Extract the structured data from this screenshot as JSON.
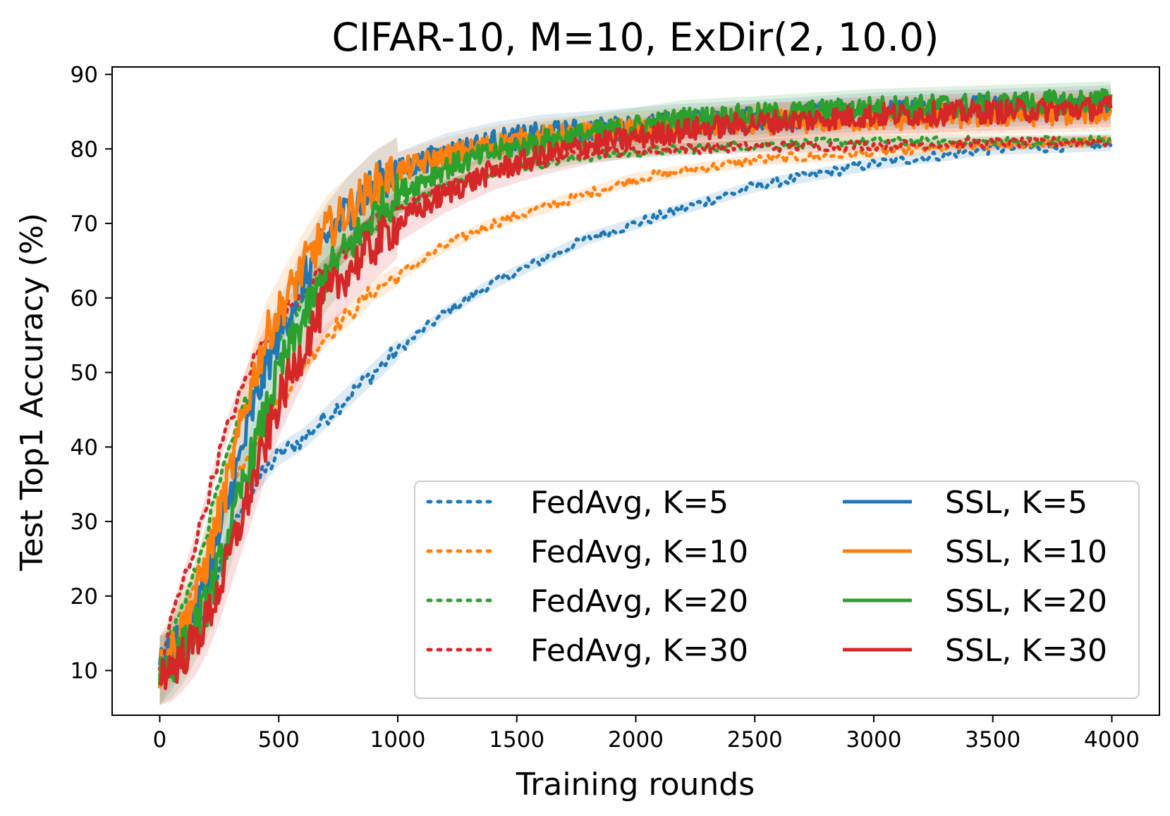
{
  "chart_data": {
    "type": "line",
    "title": "CIFAR-10, M=10, ExDir(2, 10.0)",
    "xlabel": "Training rounds",
    "ylabel": "Test Top1 Accuracy (%)",
    "xlim": [
      -200,
      4200
    ],
    "ylim": [
      4,
      91
    ],
    "xticks": [
      0,
      500,
      1000,
      1500,
      2000,
      2500,
      3000,
      3500,
      4000
    ],
    "yticks": [
      10,
      20,
      30,
      40,
      50,
      60,
      70,
      80,
      90
    ],
    "grid": false,
    "legend_position": "lower-right",
    "legend_columns": 2,
    "x": [
      0,
      50,
      100,
      150,
      200,
      250,
      300,
      350,
      400,
      450,
      500,
      600,
      700,
      800,
      900,
      1000,
      1200,
      1400,
      1600,
      1800,
      2000,
      2200,
      2500,
      3000,
      3500,
      4000
    ],
    "series": [
      {
        "name": "FedAvg, K=5",
        "color": "#1f77b4",
        "style": "dotted",
        "values": [
          10,
          10,
          12,
          15,
          19,
          24,
          28,
          32,
          35,
          37,
          39,
          41,
          44,
          47,
          50,
          53,
          58,
          62,
          65,
          68,
          70,
          72,
          75,
          78,
          80,
          80.5
        ]
      },
      {
        "name": "FedAvg, K=10",
        "color": "#ff7f0e",
        "style": "dotted",
        "values": [
          10,
          13,
          17,
          21,
          25,
          30,
          34,
          38,
          41,
          44,
          46,
          51,
          55,
          58,
          61,
          63,
          67,
          70,
          72,
          74,
          76,
          77,
          78.5,
          79.5,
          80.5,
          81
        ]
      },
      {
        "name": "FedAvg, K=20",
        "color": "#2ca02c",
        "style": "dotted",
        "values": [
          10,
          15,
          19,
          23,
          29,
          35,
          40,
          45,
          49,
          52,
          55,
          60,
          64,
          67,
          70,
          72,
          75,
          77,
          78,
          79,
          79.5,
          80,
          80.5,
          81,
          81,
          81.2
        ]
      },
      {
        "name": "FedAvg, K=30",
        "color": "#d62728",
        "style": "dotted",
        "values": [
          10,
          17,
          22,
          27,
          33,
          39,
          44,
          48,
          52,
          55,
          57,
          61,
          64,
          67,
          70,
          72,
          75,
          77,
          78.5,
          79.5,
          79.8,
          80,
          80.3,
          80.5,
          80.8,
          81
        ]
      },
      {
        "name": "SSL, K=5",
        "color": "#1f77b4",
        "style": "solid",
        "values": [
          10,
          12,
          15,
          18,
          22,
          28,
          34,
          40,
          46,
          51,
          55,
          62,
          68,
          72,
          75,
          77,
          79.5,
          81,
          82,
          82.5,
          83,
          83.5,
          84,
          85,
          85.5,
          86
        ]
      },
      {
        "name": "SSL, K=10",
        "color": "#ff7f0e",
        "style": "solid",
        "values": [
          10,
          13,
          16,
          20,
          25,
          31,
          37,
          44,
          50,
          55,
          58,
          64,
          69,
          72,
          75,
          77,
          79,
          80.5,
          81.5,
          82,
          82.5,
          83,
          83.5,
          84,
          84.5,
          85
        ]
      },
      {
        "name": "SSL, K=20",
        "color": "#2ca02c",
        "style": "solid",
        "values": [
          10,
          11,
          13,
          16,
          19,
          24,
          29,
          35,
          40,
          45,
          50,
          57,
          63,
          67,
          71,
          74,
          77.5,
          79.5,
          81,
          82,
          83,
          84,
          84.5,
          85.5,
          86,
          86.5
        ]
      },
      {
        "name": "SSL, K=30",
        "color": "#d62728",
        "style": "solid",
        "values": [
          10,
          10.5,
          12,
          14,
          17,
          21,
          26,
          31,
          36,
          41,
          46,
          53,
          60,
          64,
          67,
          70,
          74,
          77,
          79,
          80.5,
          81.5,
          82.5,
          83.5,
          84.5,
          85,
          85.5
        ]
      }
    ]
  }
}
